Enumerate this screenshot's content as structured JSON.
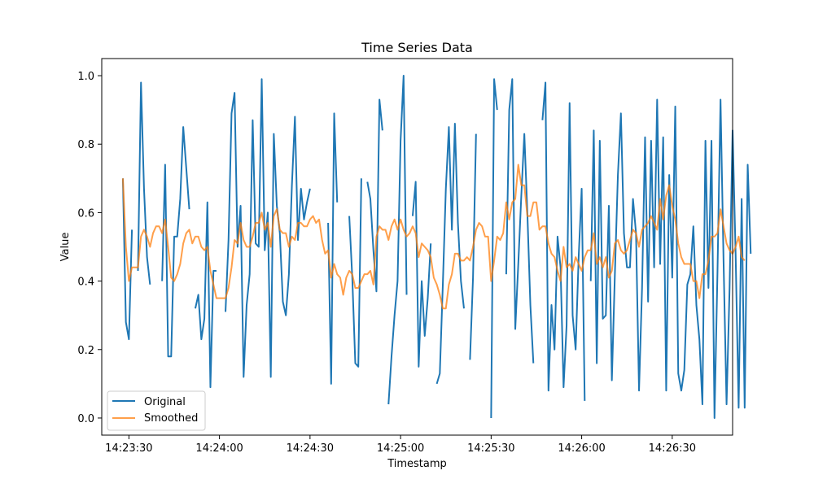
{
  "chart_data": {
    "type": "line",
    "title": "Time Series Data",
    "xlabel": "Timestamp",
    "ylabel": "Value",
    "x_start": "14:23:28",
    "x_step_seconds": 1,
    "xlim": [
      "14:23:21",
      "14:26:50"
    ],
    "ylim": [
      -0.05,
      1.05
    ],
    "x_ticks": [
      "14:23:30",
      "14:24:00",
      "14:24:30",
      "14:25:00",
      "14:25:30",
      "14:26:00",
      "14:26:30"
    ],
    "y_ticks": [
      "0.0",
      "0.2",
      "0.4",
      "0.6",
      "0.8",
      "1.0"
    ],
    "grid": false,
    "legend_position": "lower-left",
    "series": [
      {
        "name": "Original",
        "color": "#1f77b4",
        "values": [
          0.7,
          0.28,
          0.23,
          0.55,
          null,
          0.43,
          0.98,
          0.67,
          0.47,
          0.39,
          null,
          null,
          null,
          0.4,
          0.74,
          0.18,
          0.18,
          0.53,
          0.53,
          0.64,
          0.85,
          0.73,
          0.61,
          null,
          0.32,
          0.36,
          0.23,
          0.29,
          0.63,
          0.09,
          0.43,
          0.43,
          null,
          null,
          0.31,
          0.52,
          0.89,
          0.95,
          0.5,
          0.62,
          0.12,
          0.33,
          0.42,
          0.87,
          0.51,
          0.5,
          0.99,
          0.49,
          0.6,
          0.12,
          0.83,
          0.62,
          0.54,
          0.34,
          0.3,
          0.42,
          0.68,
          0.88,
          0.52,
          0.67,
          0.58,
          0.63,
          0.67,
          null,
          null,
          null,
          null,
          null,
          0.57,
          0.1,
          0.89,
          0.63,
          null,
          null,
          null,
          0.59,
          0.41,
          0.16,
          0.15,
          0.7,
          null,
          0.69,
          0.64,
          0.49,
          0.37,
          0.93,
          0.84,
          null,
          0.04,
          0.18,
          0.3,
          0.4,
          0.81,
          1.0,
          0.36,
          null,
          0.59,
          0.69,
          0.15,
          0.4,
          0.24,
          0.35,
          0.51,
          null,
          0.1,
          0.13,
          0.39,
          0.67,
          0.85,
          0.55,
          0.86,
          0.57,
          0.4,
          0.32,
          null,
          0.17,
          0.41,
          0.83,
          null,
          null,
          null,
          null,
          0.0,
          0.99,
          0.9,
          null,
          null,
          0.42,
          0.9,
          0.99,
          0.26,
          0.45,
          0.65,
          0.83,
          0.6,
          0.33,
          0.16,
          null,
          null,
          0.87,
          0.98,
          0.08,
          0.33,
          0.2,
          0.53,
          0.44,
          0.09,
          0.27,
          0.92,
          0.3,
          0.2,
          0.47,
          0.67,
          0.05,
          null,
          0.4,
          0.84,
          0.16,
          0.81,
          0.29,
          0.3,
          0.62,
          0.11,
          0.42,
          0.71,
          0.89,
          0.54,
          0.44,
          0.44,
          0.64,
          0.54,
          0.08,
          0.38,
          0.82,
          0.34,
          0.81,
          0.44,
          0.93,
          0.45,
          0.82,
          0.08,
          0.71,
          0.41,
          0.91,
          0.13,
          0.08,
          0.14,
          0.39,
          0.42,
          0.56,
          0.33,
          0.23,
          0.04,
          0.81,
          0.38,
          0.81,
          0.0,
          0.43,
          0.93,
          0.46,
          0.04,
          0.38,
          0.84,
          0.48,
          0.03,
          0.64,
          0.03,
          0.74,
          0.48
        ]
      },
      {
        "name": "Smoothed",
        "color": "#ff7f0e",
        "values": [
          0.7,
          0.5,
          0.4,
          0.44,
          0.44,
          0.44,
          0.53,
          0.55,
          0.53,
          0.5,
          0.54,
          0.56,
          0.56,
          0.54,
          0.58,
          0.5,
          0.41,
          0.4,
          0.42,
          0.45,
          0.51,
          0.54,
          0.55,
          0.51,
          0.53,
          0.53,
          0.5,
          0.49,
          0.5,
          0.43,
          0.39,
          0.35,
          0.35,
          0.35,
          0.35,
          0.38,
          0.44,
          0.52,
          0.51,
          0.57,
          0.52,
          0.5,
          0.5,
          0.53,
          0.57,
          0.57,
          0.6,
          0.55,
          0.57,
          0.5,
          0.59,
          0.61,
          0.55,
          0.54,
          0.54,
          0.5,
          0.53,
          0.52,
          0.57,
          0.57,
          0.56,
          0.56,
          0.58,
          0.59,
          0.57,
          0.58,
          0.52,
          0.48,
          0.49,
          0.41,
          0.45,
          0.42,
          0.41,
          0.36,
          0.41,
          0.43,
          0.42,
          0.38,
          0.38,
          0.4,
          0.42,
          0.42,
          0.43,
          0.39,
          0.53,
          0.56,
          0.55,
          0.55,
          0.52,
          0.56,
          0.58,
          0.55,
          0.58,
          0.55,
          0.53,
          0.54,
          0.56,
          0.54,
          0.47,
          0.51,
          0.5,
          0.49,
          0.47,
          0.41,
          0.39,
          0.36,
          0.32,
          0.32,
          0.39,
          0.42,
          0.48,
          0.48,
          0.46,
          0.46,
          0.47,
          0.46,
          0.5,
          0.55,
          0.57,
          0.56,
          0.53,
          0.53,
          0.4,
          0.46,
          0.53,
          0.52,
          0.54,
          0.63,
          0.58,
          0.63,
          0.64,
          0.74,
          0.68,
          0.68,
          0.59,
          0.59,
          0.63,
          0.63,
          0.55,
          0.56,
          0.56,
          0.51,
          0.48,
          0.47,
          0.43,
          0.4,
          0.5,
          0.44,
          0.45,
          0.43,
          0.47,
          0.45,
          0.43,
          0.47,
          0.49,
          0.49,
          0.54,
          0.45,
          0.47,
          0.44,
          0.47,
          0.41,
          0.43,
          0.51,
          0.52,
          0.49,
          0.48,
          0.49,
          0.52,
          0.55,
          0.54,
          0.5,
          0.55,
          0.56,
          0.57,
          0.59,
          0.57,
          0.55,
          0.64,
          0.58,
          0.65,
          0.68,
          0.62,
          0.58,
          0.51,
          0.47,
          0.45,
          0.45,
          0.45,
          0.4,
          0.4,
          0.35,
          0.42,
          0.42,
          0.46,
          0.53,
          0.53,
          0.54,
          0.61,
          0.56,
          0.51,
          0.49,
          0.48,
          0.5,
          0.53,
          0.47,
          0.46
        ]
      }
    ]
  }
}
